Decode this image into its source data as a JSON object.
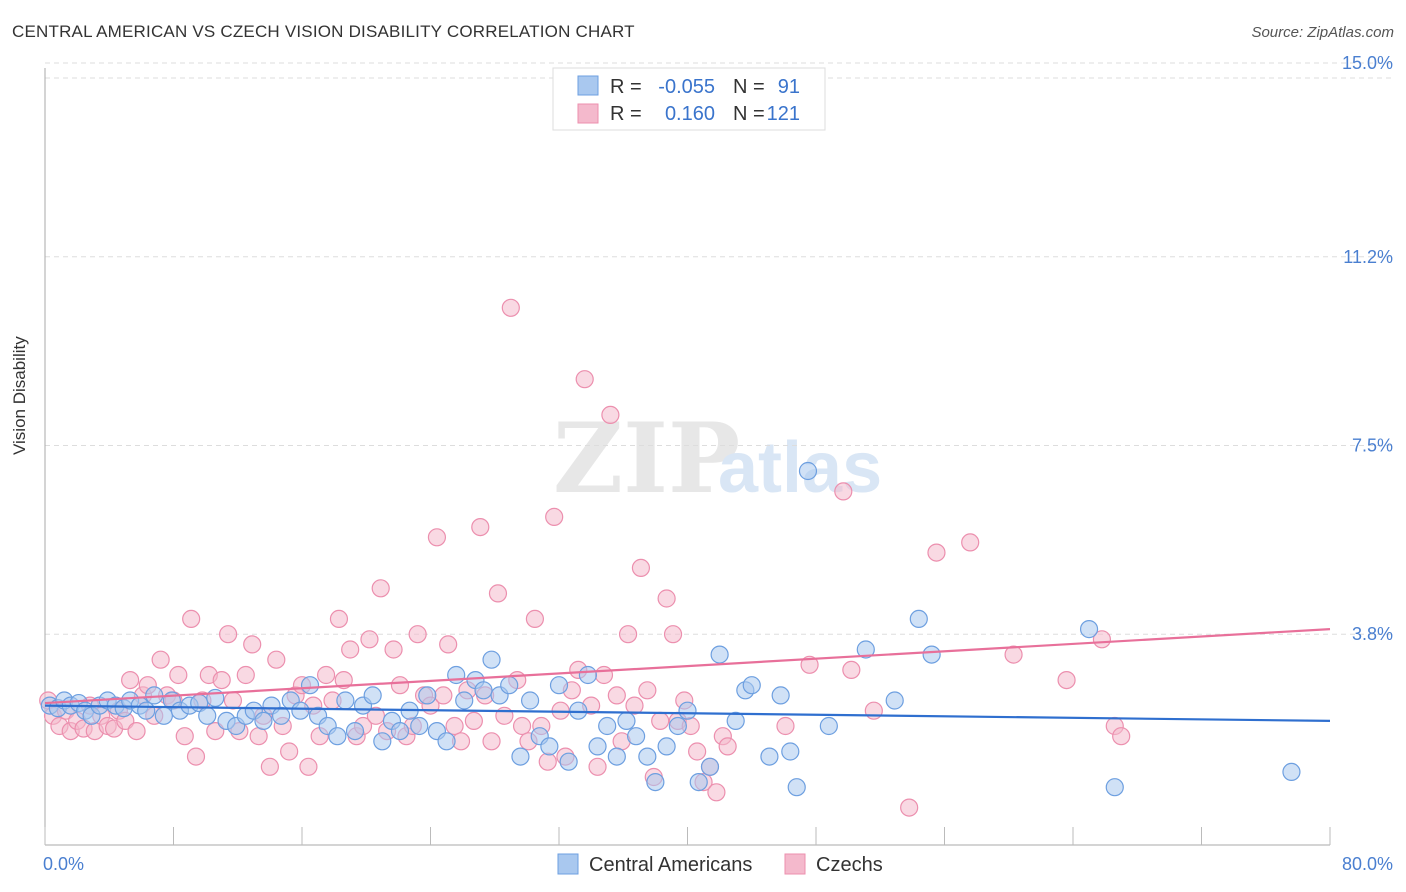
{
  "header": {
    "title": "CENTRAL AMERICAN VS CZECH VISION DISABILITY CORRELATION CHART",
    "source": "Source: ZipAtlas.com"
  },
  "watermark": {
    "zip": "ZIP",
    "atlas": "atlas"
  },
  "colors": {
    "blue_fill": "#a9c8ef",
    "blue_stroke": "#6d9fe0",
    "blue_line": "#2f6fcf",
    "pink_fill": "#f4b9cc",
    "pink_stroke": "#ec8fae",
    "pink_line": "#e8709a",
    "tick_text": "#4a7fd0",
    "grid": "#dddddd"
  },
  "legend_top": {
    "rows": [
      {
        "r_label": "R =",
        "r_value": "-0.055",
        "n_label": "N =",
        "n_value": "91"
      },
      {
        "r_label": "R =",
        "r_value": "0.160",
        "n_label": "N =",
        "n_value": "121"
      }
    ]
  },
  "legend_bottom": {
    "items": [
      {
        "label": "Central Americans"
      },
      {
        "label": "Czechs"
      }
    ]
  },
  "chart_data": {
    "type": "scatter",
    "title": "CENTRAL AMERICAN VS CZECH VISION DISABILITY CORRELATION CHART",
    "xlabel": "",
    "ylabel": "Vision Disability",
    "xlim": [
      0,
      80
    ],
    "ylim": [
      0,
      15
    ],
    "x_tick_labels": [
      "0.0%",
      "80.0%"
    ],
    "y_ticks": [
      3.8,
      7.5,
      11.2,
      15.0
    ],
    "y_tick_labels": [
      "3.8%",
      "7.5%",
      "11.2%",
      "15.0%"
    ],
    "grid": true,
    "legend_placement": "top-center and bottom-center",
    "series": [
      {
        "name": "Central Americans",
        "R": -0.055,
        "N": 91,
        "trend": [
          [
            0,
            2.4
          ],
          [
            80,
            2.1
          ]
        ],
        "points": [
          [
            0.3,
            2.4
          ],
          [
            0.8,
            2.35
          ],
          [
            1.2,
            2.5
          ],
          [
            1.6,
            2.4
          ],
          [
            2.1,
            2.45
          ],
          [
            2.5,
            2.3
          ],
          [
            2.9,
            2.2
          ],
          [
            3.4,
            2.4
          ],
          [
            3.9,
            2.5
          ],
          [
            4.4,
            2.4
          ],
          [
            4.9,
            2.35
          ],
          [
            5.3,
            2.5
          ],
          [
            5.9,
            2.4
          ],
          [
            6.3,
            2.3
          ],
          [
            6.8,
            2.6
          ],
          [
            7.4,
            2.2
          ],
          [
            7.9,
            2.5
          ],
          [
            8.4,
            2.3
          ],
          [
            9.0,
            2.4
          ],
          [
            9.6,
            2.45
          ],
          [
            10.1,
            2.2
          ],
          [
            10.6,
            2.55
          ],
          [
            11.3,
            2.1
          ],
          [
            11.9,
            2.0
          ],
          [
            12.5,
            2.2
          ],
          [
            13.0,
            2.3
          ],
          [
            13.6,
            2.1
          ],
          [
            14.1,
            2.4
          ],
          [
            14.7,
            2.2
          ],
          [
            15.3,
            2.5
          ],
          [
            15.9,
            2.3
          ],
          [
            16.5,
            2.8
          ],
          [
            17.0,
            2.2
          ],
          [
            17.6,
            2.0
          ],
          [
            18.2,
            1.8
          ],
          [
            18.7,
            2.5
          ],
          [
            19.3,
            1.9
          ],
          [
            19.8,
            2.4
          ],
          [
            20.4,
            2.6
          ],
          [
            21.0,
            1.7
          ],
          [
            21.6,
            2.1
          ],
          [
            22.1,
            1.9
          ],
          [
            22.7,
            2.3
          ],
          [
            23.3,
            2.0
          ],
          [
            23.8,
            2.6
          ],
          [
            24.4,
            1.9
          ],
          [
            25.0,
            1.7
          ],
          [
            25.6,
            3.0
          ],
          [
            26.1,
            2.5
          ],
          [
            26.8,
            2.9
          ],
          [
            27.3,
            2.7
          ],
          [
            27.8,
            3.3
          ],
          [
            28.3,
            2.6
          ],
          [
            28.9,
            2.8
          ],
          [
            29.6,
            1.4
          ],
          [
            30.2,
            2.5
          ],
          [
            30.8,
            1.8
          ],
          [
            31.4,
            1.6
          ],
          [
            32.0,
            2.8
          ],
          [
            32.6,
            1.3
          ],
          [
            33.2,
            2.3
          ],
          [
            33.8,
            3.0
          ],
          [
            34.4,
            1.6
          ],
          [
            35.0,
            2.0
          ],
          [
            35.6,
            1.4
          ],
          [
            36.2,
            2.1
          ],
          [
            36.8,
            1.8
          ],
          [
            37.5,
            1.4
          ],
          [
            38.0,
            0.9
          ],
          [
            38.7,
            1.6
          ],
          [
            39.4,
            2.0
          ],
          [
            40.0,
            2.3
          ],
          [
            40.7,
            0.9
          ],
          [
            41.4,
            1.2
          ],
          [
            42.0,
            3.4
          ],
          [
            43.0,
            2.1
          ],
          [
            43.6,
            2.7
          ],
          [
            44.0,
            2.8
          ],
          [
            45.1,
            1.4
          ],
          [
            45.8,
            2.6
          ],
          [
            46.4,
            1.5
          ],
          [
            46.8,
            0.8
          ],
          [
            47.5,
            7.0
          ],
          [
            48.8,
            2.0
          ],
          [
            51.1,
            3.5
          ],
          [
            52.9,
            2.5
          ],
          [
            54.4,
            4.1
          ],
          [
            55.2,
            3.4
          ],
          [
            65.0,
            3.9
          ],
          [
            66.6,
            0.8
          ],
          [
            77.6,
            1.1
          ]
        ]
      },
      {
        "name": "Czechs",
        "R": 0.16,
        "N": 121,
        "trend": [
          [
            0,
            2.45
          ],
          [
            80,
            3.9
          ]
        ],
        "points": [
          [
            0.2,
            2.5
          ],
          [
            0.5,
            2.2
          ],
          [
            0.9,
            2.0
          ],
          [
            1.3,
            2.3
          ],
          [
            1.6,
            1.9
          ],
          [
            2.0,
            2.1
          ],
          [
            2.4,
            1.95
          ],
          [
            2.8,
            2.4
          ],
          [
            3.1,
            1.9
          ],
          [
            3.5,
            2.2
          ],
          [
            3.9,
            2.0
          ],
          [
            4.3,
            1.95
          ],
          [
            4.6,
            2.3
          ],
          [
            5.0,
            2.1
          ],
          [
            5.3,
            2.9
          ],
          [
            5.7,
            1.9
          ],
          [
            6.1,
            2.6
          ],
          [
            6.4,
            2.8
          ],
          [
            6.8,
            2.2
          ],
          [
            7.2,
            3.3
          ],
          [
            7.6,
            2.6
          ],
          [
            8.0,
            2.5
          ],
          [
            8.3,
            3.0
          ],
          [
            8.7,
            1.8
          ],
          [
            9.1,
            4.1
          ],
          [
            9.4,
            1.4
          ],
          [
            9.8,
            2.5
          ],
          [
            10.2,
            3.0
          ],
          [
            10.6,
            1.9
          ],
          [
            11.0,
            2.9
          ],
          [
            11.4,
            3.8
          ],
          [
            11.7,
            2.5
          ],
          [
            12.1,
            1.9
          ],
          [
            12.5,
            3.0
          ],
          [
            12.9,
            3.6
          ],
          [
            13.3,
            1.8
          ],
          [
            13.6,
            2.2
          ],
          [
            14.0,
            1.2
          ],
          [
            14.4,
            3.3
          ],
          [
            14.8,
            2.0
          ],
          [
            15.2,
            1.5
          ],
          [
            15.6,
            2.6
          ],
          [
            16.0,
            2.8
          ],
          [
            16.4,
            1.2
          ],
          [
            16.7,
            2.4
          ],
          [
            17.1,
            1.8
          ],
          [
            17.5,
            3.0
          ],
          [
            17.9,
            2.5
          ],
          [
            18.3,
            4.1
          ],
          [
            18.6,
            2.9
          ],
          [
            19.0,
            3.5
          ],
          [
            19.4,
            1.8
          ],
          [
            19.8,
            2.0
          ],
          [
            20.2,
            3.7
          ],
          [
            20.6,
            2.2
          ],
          [
            20.9,
            4.7
          ],
          [
            21.3,
            1.9
          ],
          [
            21.7,
            3.5
          ],
          [
            22.1,
            2.8
          ],
          [
            22.5,
            1.8
          ],
          [
            22.9,
            2.0
          ],
          [
            23.2,
            3.8
          ],
          [
            23.6,
            2.6
          ],
          [
            24.0,
            2.4
          ],
          [
            24.4,
            5.7
          ],
          [
            24.8,
            2.6
          ],
          [
            25.1,
            3.6
          ],
          [
            25.5,
            2.0
          ],
          [
            25.9,
            1.7
          ],
          [
            26.3,
            2.7
          ],
          [
            26.7,
            2.1
          ],
          [
            27.1,
            5.9
          ],
          [
            27.4,
            2.6
          ],
          [
            27.8,
            1.7
          ],
          [
            28.2,
            4.6
          ],
          [
            28.6,
            2.2
          ],
          [
            29.0,
            10.2
          ],
          [
            29.4,
            2.9
          ],
          [
            29.7,
            2.0
          ],
          [
            30.1,
            1.7
          ],
          [
            30.5,
            4.1
          ],
          [
            30.9,
            2.0
          ],
          [
            31.3,
            1.3
          ],
          [
            31.7,
            6.1
          ],
          [
            32.1,
            2.3
          ],
          [
            32.4,
            1.4
          ],
          [
            32.8,
            2.7
          ],
          [
            33.2,
            3.1
          ],
          [
            33.6,
            8.8
          ],
          [
            34.0,
            2.4
          ],
          [
            34.4,
            1.2
          ],
          [
            34.8,
            3.0
          ],
          [
            35.2,
            8.1
          ],
          [
            35.6,
            2.6
          ],
          [
            35.9,
            1.7
          ],
          [
            36.3,
            3.8
          ],
          [
            36.7,
            2.4
          ],
          [
            37.1,
            5.1
          ],
          [
            37.5,
            2.7
          ],
          [
            37.9,
            1.0
          ],
          [
            38.3,
            2.1
          ],
          [
            38.7,
            4.5
          ],
          [
            39.1,
            3.8
          ],
          [
            39.4,
            2.1
          ],
          [
            39.8,
            2.5
          ],
          [
            40.2,
            2.0
          ],
          [
            40.6,
            1.5
          ],
          [
            41.0,
            0.9
          ],
          [
            41.4,
            1.2
          ],
          [
            41.8,
            0.7
          ],
          [
            42.2,
            1.8
          ],
          [
            42.5,
            1.6
          ],
          [
            46.1,
            2.0
          ],
          [
            47.6,
            3.2
          ],
          [
            49.7,
            6.6
          ],
          [
            50.2,
            3.1
          ],
          [
            51.6,
            2.3
          ],
          [
            53.8,
            0.4
          ],
          [
            55.5,
            5.4
          ],
          [
            57.6,
            5.6
          ],
          [
            60.3,
            3.4
          ],
          [
            63.6,
            2.9
          ],
          [
            65.8,
            3.7
          ],
          [
            66.6,
            2.0
          ],
          [
            67.0,
            1.8
          ]
        ]
      }
    ]
  }
}
